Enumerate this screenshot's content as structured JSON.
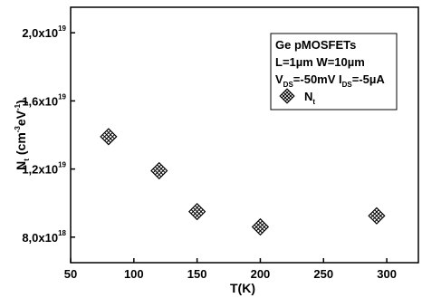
{
  "chart_data": {
    "type": "scatter",
    "xlabel": "T(K)",
    "ylabel": {
      "base": "N",
      "sub": "t",
      "unit_open": " (cm",
      "exp1": "-3",
      "mid": "eV",
      "exp2": "-1",
      "close": ")"
    },
    "xlim": [
      50,
      325
    ],
    "ylim": [
      6.5e+18,
      2.15e+19
    ],
    "x_ticks": [
      50,
      100,
      150,
      200,
      250,
      300
    ],
    "y_ticks": [
      {
        "value": 8e+18,
        "mant": "8,0x10",
        "exp": "18"
      },
      {
        "value": 1.2e+19,
        "mant": "1,2x10",
        "exp": "19"
      },
      {
        "value": 1.6e+19,
        "mant": "1,6x10",
        "exp": "19"
      },
      {
        "value": 2e+19,
        "mant": "2,0x10",
        "exp": "19"
      }
    ],
    "series": [
      {
        "marker": "crossed-square",
        "points": [
          [
            80,
            1.39e+19
          ],
          [
            120,
            1.19e+19
          ],
          [
            150,
            9.5e+18
          ],
          [
            200,
            8.6e+18
          ],
          [
            292,
            9.25e+18
          ]
        ]
      }
    ],
    "legend": {
      "placement": "top-right",
      "lines": [
        {
          "text": "Ge pMOSFETs"
        },
        {
          "text": "L=1µm W=10µm"
        },
        {
          "parts": [
            {
              "t": "V"
            },
            {
              "t": "DS",
              "sub": true
            },
            {
              "t": "=-50mV I"
            },
            {
              "t": "DS",
              "sub": true
            },
            {
              "t": "=-5µA"
            }
          ]
        }
      ],
      "entry": {
        "base": "N",
        "sub": "t"
      }
    },
    "grid": false
  }
}
